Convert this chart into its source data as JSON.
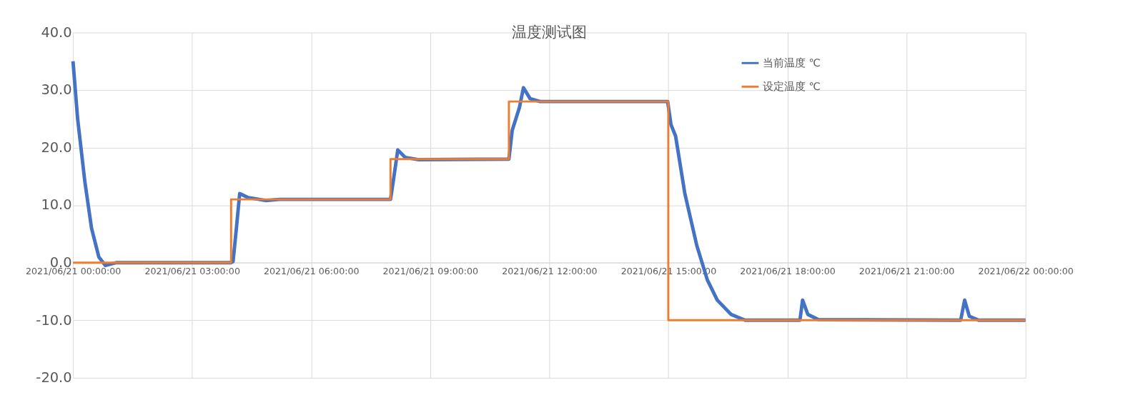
{
  "chart_data": {
    "type": "line",
    "title": "温度测试图",
    "xlim": [
      "2021-06-21T00:00",
      "2021-06-22T00:00"
    ],
    "xticks": [
      {
        "value": "2021-06-21T00:00",
        "label": "2021/06/21 00:00:00"
      },
      {
        "value": "2021-06-21T03:00",
        "label": "2021/06/21 03:00:00"
      },
      {
        "value": "2021-06-21T06:00",
        "label": "2021/06/21 06:00:00"
      },
      {
        "value": "2021-06-21T09:00",
        "label": "2021/06/21 09:00:00"
      },
      {
        "value": "2021-06-21T12:00",
        "label": "2021/06/21 12:00:00"
      },
      {
        "value": "2021-06-21T15:00",
        "label": "2021/06/21 15:00:00"
      },
      {
        "value": "2021-06-21T18:00",
        "label": "2021/06/21 18:00:00"
      },
      {
        "value": "2021-06-21T21:00",
        "label": "2021/06/21 21:00:00"
      },
      {
        "value": "2021-06-22T00:00",
        "label": "2021/06/22 00:00:00"
      }
    ],
    "ylim": [
      -20,
      40
    ],
    "yticks": [
      {
        "value": -20,
        "label": "-20.0"
      },
      {
        "value": -10,
        "label": "-10.0"
      },
      {
        "value": 0,
        "label": "0.0"
      },
      {
        "value": 10,
        "label": "10.0"
      },
      {
        "value": 20,
        "label": "20.0"
      },
      {
        "value": 30,
        "label": "30.0"
      },
      {
        "value": 40,
        "label": "40.0"
      }
    ],
    "grid": true,
    "legend": "top right",
    "line_style": "solid",
    "marker": "none",
    "series": [
      {
        "name": "当前温度 ℃",
        "color": "#4472c4",
        "type": "line",
        "x": [
          "2021-06-21T00:00",
          "2021-06-21T00:07",
          "2021-06-21T00:18",
          "2021-06-21T00:28",
          "2021-06-21T00:39",
          "2021-06-21T00:49",
          "2021-06-21T01:05",
          "2021-06-21T03:59",
          "2021-06-21T04:02",
          "2021-06-21T04:07",
          "2021-06-21T04:12",
          "2021-06-21T04:25",
          "2021-06-21T04:51",
          "2021-06-21T05:12",
          "2021-06-21T08:00",
          "2021-06-21T08:04",
          "2021-06-21T08:11",
          "2021-06-21T08:22",
          "2021-06-21T08:43",
          "2021-06-21T10:59",
          "2021-06-21T11:04",
          "2021-06-21T11:15",
          "2021-06-21T11:21",
          "2021-06-21T11:31",
          "2021-06-21T11:46",
          "2021-06-21T14:59",
          "2021-06-21T15:04",
          "2021-06-21T15:11",
          "2021-06-21T15:25",
          "2021-06-21T15:43",
          "2021-06-21T15:59",
          "2021-06-21T16:14",
          "2021-06-21T16:35",
          "2021-06-21T16:56",
          "2021-06-21T18:19",
          "2021-06-21T18:23",
          "2021-06-21T18:31",
          "2021-06-21T18:47",
          "2021-06-21T22:22",
          "2021-06-21T22:28",
          "2021-06-21T22:35",
          "2021-06-21T22:49",
          "2021-06-22T00:00"
        ],
        "values": [
          35,
          25,
          14,
          6,
          1,
          -0.5,
          0,
          0,
          0.2,
          6,
          12,
          11.3,
          10.8,
          11,
          11,
          14,
          19.6,
          18.3,
          17.9,
          18,
          23,
          27,
          30.4,
          28.5,
          28,
          28,
          24,
          22,
          12,
          3,
          -3,
          -6.5,
          -9,
          -10,
          -10,
          -6.5,
          -9,
          -9.9,
          -10,
          -6.5,
          -9.3,
          -10,
          -10
        ]
      },
      {
        "name": "设定温度 ℃",
        "color": "#ed7d31",
        "type": "step",
        "x": [
          "2021-06-21T00:00",
          "2021-06-21T03:59",
          "2021-06-21T08:00",
          "2021-06-21T10:59",
          "2021-06-21T15:00",
          "2021-06-22T00:00"
        ],
        "values": [
          0,
          11,
          18,
          28,
          -10,
          -10
        ]
      }
    ]
  }
}
